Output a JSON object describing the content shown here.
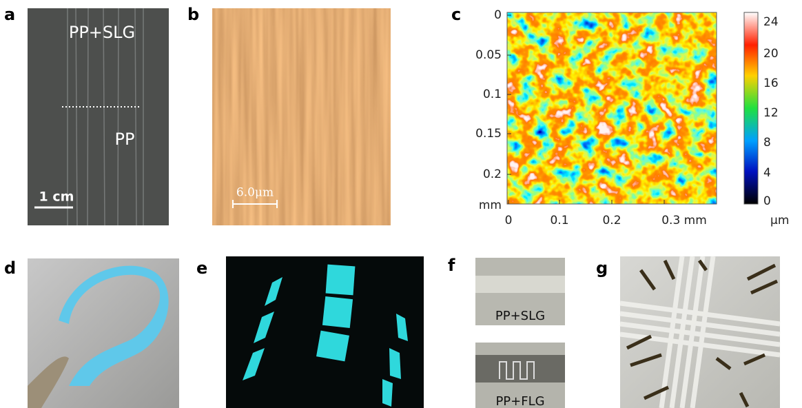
{
  "panels": {
    "a": {
      "label": "a",
      "top_text": "PP+SLG",
      "bottom_text": "PP",
      "scale_bar": "1 cm"
    },
    "b": {
      "label": "b",
      "scale_bar": "6.0μm"
    },
    "c": {
      "label": "c",
      "y_ticks": [
        "0",
        "0.05",
        "0.1",
        "0.15",
        "0.2",
        "mm"
      ],
      "x_ticks": [
        "0",
        "0.1",
        "0.2",
        "0.3 mm"
      ],
      "colorbar_ticks": [
        "24",
        "20",
        "16",
        "12",
        "8",
        "4",
        "0"
      ],
      "colorbar_unit": "μm"
    },
    "d": {
      "label": "d"
    },
    "e": {
      "label": "e"
    },
    "f": {
      "label": "f",
      "top_caption": "PP+SLG",
      "bottom_caption": "PP+FLG"
    },
    "g": {
      "label": "g"
    }
  }
}
